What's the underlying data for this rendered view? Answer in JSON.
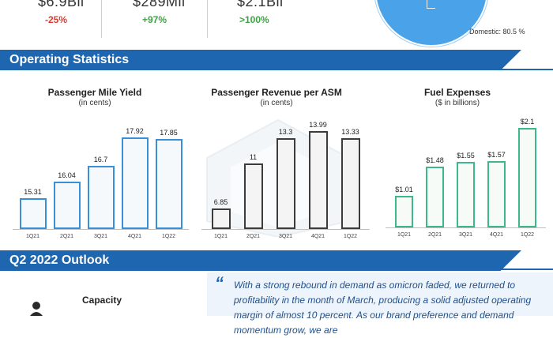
{
  "kpis": [
    {
      "value": "$6.9Bil",
      "change": "-25%",
      "tone": "neg"
    },
    {
      "value": "$289Mil",
      "change": "+97%",
      "tone": "pos"
    },
    {
      "value": "$2.1Bil",
      "change": ">100%",
      "tone": "pos"
    }
  ],
  "pie_label": "Domestic: 80.5 %",
  "section_operating": "Operating Statistics",
  "section_outlook": "Q2 2022 Outlook",
  "capacity_label": "Capacity",
  "quote_open": "“",
  "quote_text": "With a strong rebound in demand as omicron faded, we returned to profitability in the month of March, producing a solid adjusted operating margin of almost 10 percent. As our brand preference and demand momentum grow, we are",
  "colors": {
    "banner": "#1f66b0",
    "blue": "#3a8fd9",
    "gray": "#3c3c3c",
    "green": "#3cb88a"
  },
  "chart_data": [
    {
      "type": "bar",
      "title": "Passenger Mile Yield",
      "subtitle": "(in cents)",
      "categories": [
        "1Q21",
        "2Q21",
        "3Q21",
        "4Q21",
        "1Q22"
      ],
      "values": [
        15.31,
        16.04,
        16.7,
        17.92,
        17.85
      ],
      "labels": [
        "15.31",
        "16.04",
        "16.7",
        "17.92",
        "17.85"
      ],
      "ylim": [
        14.0,
        18.4
      ],
      "color": "blue"
    },
    {
      "type": "bar",
      "title": "Passenger Revenue per ASM",
      "subtitle": "(in cents)",
      "categories": [
        "1Q21",
        "2Q21",
        "3Q21",
        "4Q21",
        "1Q22"
      ],
      "values": [
        6.85,
        11,
        13.3,
        13.99,
        13.33
      ],
      "labels": [
        "6.85",
        "11",
        "13.3",
        "13.99",
        "13.33"
      ],
      "ylim": [
        5.0,
        14.4
      ],
      "color": "gray"
    },
    {
      "type": "bar",
      "title": "Fuel Expenses",
      "subtitle": "($ in billions)",
      "categories": [
        "1Q21",
        "2Q21",
        "3Q21",
        "4Q21",
        "1Q22"
      ],
      "values": [
        1.01,
        1.48,
        1.55,
        1.57,
        2.1
      ],
      "labels": [
        "$1.01",
        "$1.48",
        "$1.55",
        "$1.57",
        "$2.1"
      ],
      "ylim": [
        0.5,
        2.15
      ],
      "color": "green"
    }
  ]
}
